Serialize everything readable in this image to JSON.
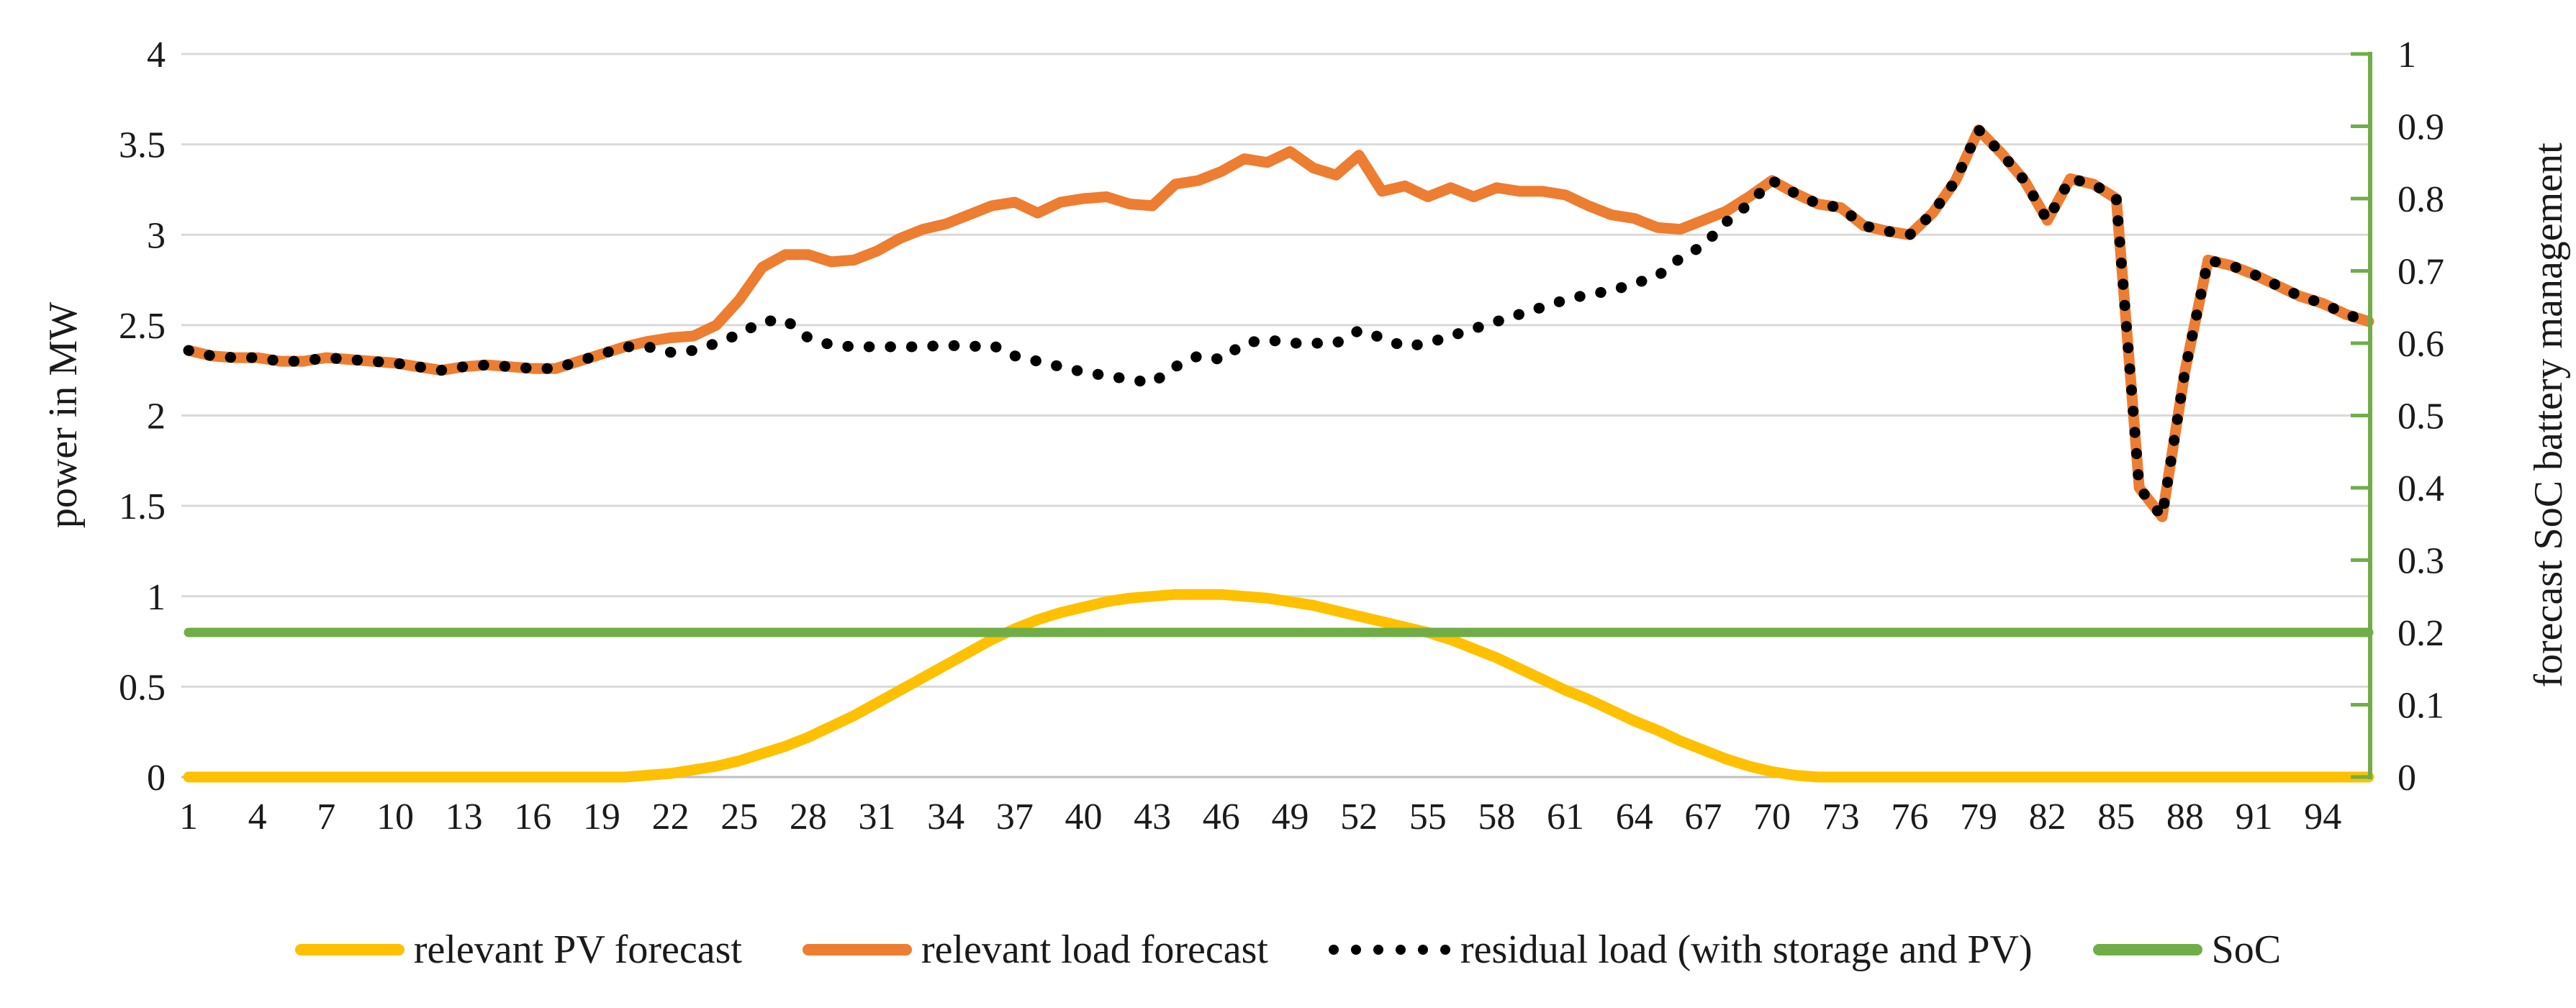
{
  "figure": {
    "legend": [
      {
        "label": "relevant PV forecast",
        "color": "#FFC000",
        "marker": "line"
      },
      {
        "label": "relevant load forecast",
        "color": "#ED7D31",
        "marker": "line"
      },
      {
        "label": "residual load (with storage and PV)",
        "color": "#000000",
        "marker": "dots"
      },
      {
        "label": "SoC",
        "color": "#70AD47",
        "marker": "line"
      }
    ]
  },
  "chart_data": {
    "type": "line",
    "title": "",
    "n_points": 96,
    "x_tick_labels": [
      1,
      4,
      7,
      10,
      13,
      16,
      19,
      22,
      25,
      28,
      31,
      34,
      37,
      40,
      43,
      46,
      49,
      52,
      55,
      58,
      61,
      64,
      67,
      70,
      73,
      76,
      79,
      82,
      85,
      88,
      91,
      94
    ],
    "left_axis": {
      "title": "power in MW",
      "min": 0,
      "max": 4,
      "ticks": [
        0,
        0.5,
        1,
        1.5,
        2,
        2.5,
        3,
        3.5,
        4
      ]
    },
    "right_axis": {
      "title": "forecast SoC battery management",
      "min": 0,
      "max": 1,
      "ticks": [
        0,
        0.1,
        0.2,
        0.3,
        0.4,
        0.5,
        0.6,
        0.7,
        0.8,
        0.9,
        1
      ],
      "color": "#70AD47"
    },
    "grid": true,
    "grid_color": "#D9D9D9",
    "axis_line_color": "#BFBFBF",
    "legend_position": "bottom",
    "series": [
      {
        "name": "relevant PV forecast",
        "axis": "left",
        "color": "#FFC000",
        "style": "solid",
        "width": 15,
        "values": [
          0,
          0,
          0,
          0,
          0,
          0,
          0,
          0,
          0,
          0,
          0,
          0,
          0,
          0,
          0,
          0,
          0,
          0,
          0,
          0,
          0.01,
          0.02,
          0.04,
          0.06,
          0.09,
          0.13,
          0.17,
          0.22,
          0.28,
          0.34,
          0.41,
          0.48,
          0.55,
          0.62,
          0.69,
          0.76,
          0.82,
          0.87,
          0.91,
          0.94,
          0.97,
          0.99,
          1.0,
          1.01,
          1.01,
          1.01,
          1.0,
          0.99,
          0.97,
          0.95,
          0.92,
          0.89,
          0.86,
          0.83,
          0.8,
          0.76,
          0.71,
          0.66,
          0.6,
          0.54,
          0.48,
          0.43,
          0.37,
          0.31,
          0.26,
          0.2,
          0.15,
          0.1,
          0.06,
          0.03,
          0.01,
          0,
          0,
          0,
          0,
          0,
          0,
          0,
          0,
          0,
          0,
          0,
          0,
          0,
          0,
          0,
          0,
          0,
          0,
          0,
          0,
          0,
          0,
          0,
          0,
          0
        ]
      },
      {
        "name": "SoC",
        "axis": "right",
        "color": "#70AD47",
        "style": "solid",
        "width": 13,
        "constant": 0.2
      },
      {
        "name": "relevant load forecast",
        "axis": "left",
        "color": "#ED7D31",
        "style": "solid",
        "width": 15,
        "values": [
          2.36,
          2.33,
          2.32,
          2.32,
          2.3,
          2.3,
          2.32,
          2.31,
          2.3,
          2.29,
          2.27,
          2.25,
          2.27,
          2.28,
          2.27,
          2.26,
          2.26,
          2.3,
          2.34,
          2.38,
          2.41,
          2.43,
          2.44,
          2.5,
          2.64,
          2.82,
          2.89,
          2.89,
          2.85,
          2.86,
          2.91,
          2.98,
          3.03,
          3.06,
          3.11,
          3.16,
          3.18,
          3.12,
          3.18,
          3.2,
          3.21,
          3.17,
          3.16,
          3.28,
          3.3,
          3.35,
          3.42,
          3.4,
          3.46,
          3.37,
          3.33,
          3.44,
          3.24,
          3.27,
          3.21,
          3.26,
          3.21,
          3.26,
          3.24,
          3.24,
          3.22,
          3.16,
          3.11,
          3.09,
          3.04,
          3.03,
          3.08,
          3.13,
          3.21,
          3.3,
          3.23,
          3.17,
          3.15,
          3.05,
          3.02,
          3.0,
          3.12,
          3.3,
          3.58,
          3.45,
          3.3,
          3.08,
          3.31,
          3.28,
          3.2,
          1.6,
          1.44,
          2.25,
          2.86,
          2.83,
          2.78,
          2.72,
          2.66,
          2.62,
          2.56,
          2.52
        ]
      },
      {
        "name": "residual load (with storage and PV)",
        "axis": "left",
        "color": "#000000",
        "style": "dotted",
        "width": 15,
        "values": [
          2.36,
          2.33,
          2.32,
          2.32,
          2.3,
          2.3,
          2.32,
          2.31,
          2.3,
          2.29,
          2.27,
          2.25,
          2.27,
          2.28,
          2.27,
          2.26,
          2.26,
          2.3,
          2.34,
          2.38,
          2.38,
          2.35,
          2.36,
          2.4,
          2.45,
          2.52,
          2.53,
          2.43,
          2.39,
          2.38,
          2.38,
          2.38,
          2.38,
          2.39,
          2.38,
          2.39,
          2.33,
          2.3,
          2.27,
          2.24,
          2.22,
          2.2,
          2.18,
          2.27,
          2.33,
          2.31,
          2.4,
          2.42,
          2.4,
          2.4,
          2.4,
          2.47,
          2.43,
          2.38,
          2.4,
          2.44,
          2.48,
          2.52,
          2.56,
          2.6,
          2.64,
          2.67,
          2.69,
          2.73,
          2.77,
          2.87,
          2.94,
          3.07,
          3.17,
          3.3,
          3.23,
          3.17,
          3.15,
          3.05,
          3.02,
          3.0,
          3.12,
          3.3,
          3.58,
          3.45,
          3.3,
          3.08,
          3.31,
          3.28,
          3.2,
          1.6,
          1.44,
          2.25,
          2.86,
          2.83,
          2.78,
          2.72,
          2.66,
          2.62,
          2.56,
          2.52
        ]
      }
    ]
  }
}
